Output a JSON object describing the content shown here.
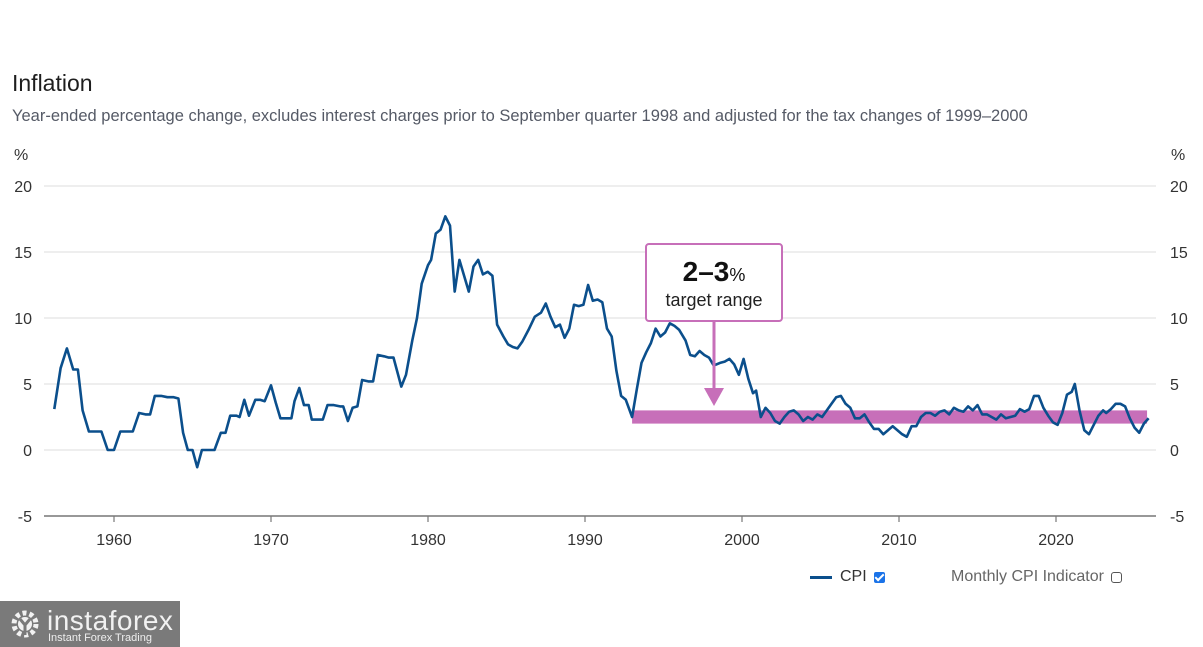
{
  "title": "Inflation",
  "subtitle": "Year-ended percentage change, excludes interest charges prior to September quarter 1998 and adjusted for the tax changes of 1999–2000",
  "annotation": {
    "big": "2–3",
    "pct": "%",
    "small": "target range"
  },
  "legend": {
    "cpi_label": "CPI",
    "cpi_checked": true,
    "monthly_label": "Monthly CPI Indicator",
    "monthly_checked": false
  },
  "watermark": {
    "brand": "instaforex",
    "tagline": "Instant Forex Trading"
  },
  "colors": {
    "line": "#0b4f8c",
    "target_band": "#c76fb9",
    "grid": "#e3e3e3",
    "axis": "#777777"
  },
  "chart_data": {
    "type": "line",
    "title": "Inflation",
    "subtitle": "Year-ended percentage change, excludes interest charges prior to September quarter 1998 and adjusted for the tax changes of 1999–2000",
    "ylabel_left": "%",
    "ylabel_right": "%",
    "xlabel": "",
    "ylim": [
      -5,
      20
    ],
    "yticks": [
      20,
      15,
      10,
      5,
      0,
      -5
    ],
    "xlim": [
      1955.8,
      2026.6
    ],
    "xticks": [
      1960,
      1970,
      1980,
      1990,
      2000,
      2010,
      2020
    ],
    "grid": true,
    "legend_position": "bottom-right",
    "target_band": {
      "from_year": 1993.0,
      "to_year": 2025.8,
      "low": 2,
      "high": 3,
      "label": "2–3% target range"
    },
    "series": [
      {
        "name": "CPI",
        "points": [
          [
            1956.2,
            3.1
          ],
          [
            1956.6,
            6.2
          ],
          [
            1957.0,
            7.7
          ],
          [
            1957.4,
            6.1
          ],
          [
            1957.7,
            6.1
          ],
          [
            1958.0,
            3.0
          ],
          [
            1958.4,
            1.4
          ],
          [
            1958.8,
            1.4
          ],
          [
            1959.2,
            1.4
          ],
          [
            1959.6,
            0.0
          ],
          [
            1960.0,
            0.0
          ],
          [
            1960.4,
            1.4
          ],
          [
            1960.8,
            1.4
          ],
          [
            1961.2,
            1.4
          ],
          [
            1961.6,
            2.8
          ],
          [
            1962.0,
            2.7
          ],
          [
            1962.3,
            2.7
          ],
          [
            1962.6,
            4.1
          ],
          [
            1963.0,
            4.1
          ],
          [
            1963.4,
            4.0
          ],
          [
            1963.8,
            4.0
          ],
          [
            1964.1,
            3.9
          ],
          [
            1964.4,
            1.3
          ],
          [
            1964.7,
            0.0
          ],
          [
            1965.0,
            0.0
          ],
          [
            1965.3,
            -1.3
          ],
          [
            1965.6,
            0.0
          ],
          [
            1966.0,
            0.0
          ],
          [
            1966.4,
            0.0
          ],
          [
            1966.8,
            1.3
          ],
          [
            1967.1,
            1.3
          ],
          [
            1967.4,
            2.6
          ],
          [
            1967.8,
            2.6
          ],
          [
            1968.0,
            2.5
          ],
          [
            1968.3,
            3.8
          ],
          [
            1968.6,
            2.6
          ],
          [
            1969.0,
            3.8
          ],
          [
            1969.3,
            3.8
          ],
          [
            1969.6,
            3.7
          ],
          [
            1970.0,
            4.9
          ],
          [
            1970.3,
            3.6
          ],
          [
            1970.6,
            2.4
          ],
          [
            1971.0,
            2.4
          ],
          [
            1971.3,
            2.4
          ],
          [
            1971.5,
            3.7
          ],
          [
            1971.8,
            4.7
          ],
          [
            1972.1,
            3.4
          ],
          [
            1972.4,
            3.4
          ],
          [
            1972.6,
            2.3
          ],
          [
            1973.0,
            2.3
          ],
          [
            1973.3,
            2.3
          ],
          [
            1973.6,
            3.4
          ],
          [
            1974.0,
            3.4
          ],
          [
            1974.4,
            3.3
          ],
          [
            1974.6,
            3.3
          ],
          [
            1974.9,
            2.2
          ],
          [
            1975.2,
            3.2
          ],
          [
            1975.5,
            3.3
          ],
          [
            1975.8,
            5.3
          ],
          [
            1976.2,
            5.2
          ],
          [
            1976.5,
            5.2
          ],
          [
            1976.8,
            7.2
          ],
          [
            1977.2,
            7.1
          ],
          [
            1977.5,
            7.0
          ],
          [
            1977.8,
            7.0
          ],
          [
            1978.3,
            4.8
          ],
          [
            1978.6,
            5.7
          ],
          [
            1979.0,
            8.3
          ],
          [
            1979.3,
            10.0
          ],
          [
            1979.6,
            12.6
          ],
          [
            1980.0,
            14.0
          ],
          [
            1980.2,
            14.4
          ],
          [
            1980.5,
            16.4
          ],
          [
            1980.8,
            16.7
          ],
          [
            1981.1,
            17.7
          ],
          [
            1981.4,
            17.0
          ],
          [
            1981.7,
            12.0
          ],
          [
            1982.0,
            14.4
          ],
          [
            1982.3,
            13.2
          ],
          [
            1982.6,
            12.0
          ],
          [
            1982.9,
            13.9
          ],
          [
            1983.2,
            14.4
          ],
          [
            1983.5,
            13.3
          ],
          [
            1983.8,
            13.5
          ],
          [
            1984.1,
            13.2
          ],
          [
            1984.4,
            9.5
          ],
          [
            1984.8,
            8.6
          ],
          [
            1985.1,
            8.0
          ],
          [
            1985.4,
            7.8
          ],
          [
            1985.7,
            7.7
          ],
          [
            1986.0,
            8.2
          ],
          [
            1986.4,
            9.1
          ],
          [
            1986.8,
            10.1
          ],
          [
            1987.2,
            10.4
          ],
          [
            1987.5,
            11.1
          ],
          [
            1987.8,
            10.1
          ],
          [
            1988.1,
            9.3
          ],
          [
            1988.4,
            9.5
          ],
          [
            1988.7,
            8.5
          ],
          [
            1989.0,
            9.2
          ],
          [
            1989.3,
            11.0
          ],
          [
            1989.6,
            10.9
          ],
          [
            1989.9,
            11.0
          ],
          [
            1990.2,
            12.5
          ],
          [
            1990.5,
            11.3
          ],
          [
            1990.8,
            11.4
          ],
          [
            1991.1,
            11.2
          ],
          [
            1991.4,
            9.2
          ],
          [
            1991.7,
            8.6
          ],
          [
            1992.0,
            6.0
          ],
          [
            1992.3,
            4.1
          ],
          [
            1992.6,
            3.8
          ],
          [
            1993.0,
            2.5
          ],
          [
            1993.3,
            4.6
          ],
          [
            1993.6,
            6.6
          ],
          [
            1993.9,
            7.4
          ],
          [
            1994.2,
            8.1
          ],
          [
            1994.5,
            9.2
          ],
          [
            1994.8,
            8.6
          ],
          [
            1995.1,
            8.9
          ],
          [
            1995.4,
            9.6
          ],
          [
            1995.7,
            9.4
          ],
          [
            1996.0,
            9.1
          ],
          [
            1996.4,
            8.3
          ],
          [
            1996.7,
            7.2
          ],
          [
            1997.0,
            7.1
          ],
          [
            1997.3,
            7.5
          ],
          [
            1997.6,
            7.2
          ],
          [
            1997.9,
            7.0
          ],
          [
            1998.2,
            6.4
          ],
          [
            1998.6,
            6.6
          ],
          [
            1998.9,
            6.7
          ],
          [
            1999.2,
            6.9
          ],
          [
            1999.5,
            6.5
          ],
          [
            1999.8,
            5.7
          ],
          [
            2000.1,
            6.9
          ],
          [
            2000.4,
            5.4
          ],
          [
            2000.7,
            4.3
          ],
          [
            2000.9,
            4.5
          ],
          [
            2001.2,
            2.5
          ],
          [
            2001.5,
            3.2
          ],
          [
            2001.8,
            2.8
          ],
          [
            2002.1,
            2.2
          ],
          [
            2002.4,
            2.0
          ],
          [
            2002.7,
            2.5
          ],
          [
            2003.0,
            2.9
          ],
          [
            2003.3,
            3.0
          ],
          [
            2003.6,
            2.7
          ],
          [
            2003.9,
            2.2
          ],
          [
            2004.2,
            2.5
          ],
          [
            2004.5,
            2.3
          ],
          [
            2004.8,
            2.7
          ],
          [
            2005.1,
            2.5
          ],
          [
            2005.4,
            3.0
          ],
          [
            2005.7,
            3.5
          ],
          [
            2006.0,
            4.0
          ],
          [
            2006.3,
            4.1
          ],
          [
            2006.6,
            3.5
          ],
          [
            2006.9,
            3.2
          ],
          [
            2007.2,
            2.4
          ],
          [
            2007.5,
            2.4
          ],
          [
            2007.8,
            2.7
          ],
          [
            2008.1,
            2.1
          ],
          [
            2008.4,
            1.6
          ],
          [
            2008.7,
            1.6
          ],
          [
            2009.0,
            1.2
          ],
          [
            2009.3,
            1.5
          ],
          [
            2009.6,
            1.8
          ],
          [
            2009.9,
            1.5
          ],
          [
            2010.2,
            1.2
          ],
          [
            2010.5,
            1.0
          ],
          [
            2010.8,
            1.8
          ],
          [
            2011.1,
            1.8
          ],
          [
            2011.4,
            2.5
          ],
          [
            2011.7,
            2.8
          ],
          [
            2012.0,
            2.8
          ],
          [
            2012.3,
            2.6
          ],
          [
            2012.6,
            2.9
          ],
          [
            2012.9,
            3.0
          ],
          [
            2013.2,
            2.7
          ],
          [
            2013.5,
            3.2
          ],
          [
            2013.8,
            3.0
          ],
          [
            2014.1,
            2.9
          ],
          [
            2014.4,
            3.3
          ],
          [
            2014.7,
            3.0
          ],
          [
            2015.0,
            3.4
          ],
          [
            2015.3,
            2.7
          ],
          [
            2015.6,
            2.7
          ],
          [
            2015.9,
            2.5
          ],
          [
            2016.2,
            2.3
          ],
          [
            2016.5,
            2.7
          ],
          [
            2016.8,
            2.4
          ],
          [
            2017.1,
            2.5
          ],
          [
            2017.4,
            2.6
          ],
          [
            2017.7,
            3.1
          ],
          [
            2018.0,
            2.9
          ],
          [
            2018.3,
            3.1
          ],
          [
            2018.6,
            4.1
          ],
          [
            2018.9,
            4.1
          ],
          [
            2019.2,
            3.2
          ],
          [
            2019.5,
            2.6
          ],
          [
            2019.8,
            2.1
          ],
          [
            2020.1,
            1.9
          ],
          [
            2020.4,
            2.8
          ],
          [
            2020.7,
            4.2
          ],
          [
            2021.0,
            4.4
          ],
          [
            2021.2,
            5.0
          ],
          [
            2021.5,
            3.0
          ],
          [
            2021.8,
            1.5
          ],
          [
            2022.1,
            1.2
          ],
          [
            2022.4,
            1.9
          ],
          [
            2022.7,
            2.6
          ],
          [
            2023.0,
            3.0
          ],
          [
            2023.2,
            2.8
          ],
          [
            2023.5,
            3.1
          ],
          [
            2023.8,
            3.5
          ],
          [
            2024.1,
            3.5
          ],
          [
            2024.4,
            3.3
          ],
          [
            2024.7,
            2.4
          ],
          [
            2025.0,
            1.7
          ],
          [
            2025.3,
            1.3
          ],
          [
            2025.6,
            2.0
          ],
          [
            2025.9,
            2.4
          ]
        ]
      }
    ]
  }
}
